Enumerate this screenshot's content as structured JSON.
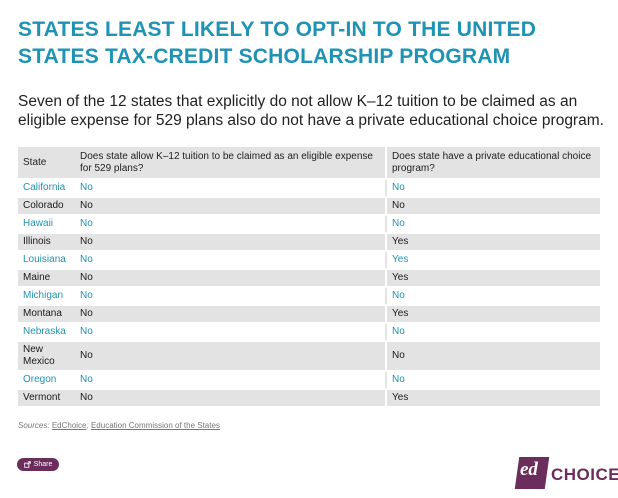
{
  "title": "STATES LEAST LIKELY TO OPT-IN TO THE UNITED STATES TAX-CREDIT SCHOLARSHIP PROGRAM",
  "subtitle": "Seven of the 12 states that explicitly do not allow K–12 tuition to be claimed as an eligible expense for 529 plans also do not have a private educational choice program.",
  "table": {
    "headers": [
      "State",
      "Does state allow K–12 tuition to be claimed as an eligible expense for 529 plans?",
      "Does state have a private educational choice program?"
    ],
    "rows": [
      {
        "state": "California",
        "k12": "No",
        "choice": "No"
      },
      {
        "state": "Colorado",
        "k12": "No",
        "choice": "No"
      },
      {
        "state": "Hawaii",
        "k12": "No",
        "choice": "No"
      },
      {
        "state": "Illinois",
        "k12": "No",
        "choice": "Yes"
      },
      {
        "state": "Louisiana",
        "k12": "No",
        "choice": "Yes"
      },
      {
        "state": "Maine",
        "k12": "No",
        "choice": "Yes"
      },
      {
        "state": "Michigan",
        "k12": "No",
        "choice": "No"
      },
      {
        "state": "Montana",
        "k12": "No",
        "choice": "Yes"
      },
      {
        "state": "Nebraska",
        "k12": "No",
        "choice": "No"
      },
      {
        "state": "New Mexico",
        "k12": "No",
        "choice": "No"
      },
      {
        "state": "Oregon",
        "k12": "No",
        "choice": "No"
      },
      {
        "state": "Vermont",
        "k12": "No",
        "choice": "Yes"
      }
    ]
  },
  "sources": {
    "label": "Sources:",
    "source1": "EdChoice",
    "separator": ";",
    "source2": "Education Commission of the States"
  },
  "share_label": "Share",
  "logo": {
    "ed": "ed",
    "choice": "CHOICE"
  },
  "colors": {
    "accent": "#1f93b3",
    "brand": "#6b2d5c",
    "stripe": "#e3e3e3"
  }
}
